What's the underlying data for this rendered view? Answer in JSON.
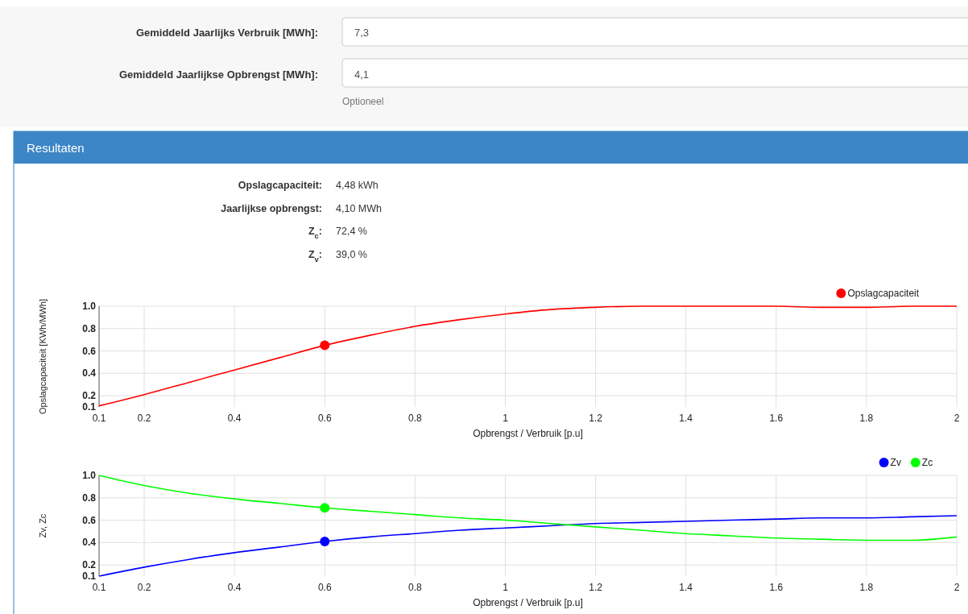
{
  "chart_data": [
    {
      "type": "other",
      "annotations": [
        "Gemiddeld Jaarlijks Verbruik [MWh]:",
        "7,3",
        "Gemiddeld Jaarlijkse Opbrengst [MWh]:",
        "4,1",
        "Optioneel",
        "Resultaten",
        "Opslagcapaciteit:",
        "4,48 kWh",
        "Jaarlijkse opbrengst:",
        "4,10 MWh",
        "Z$_{c}$:",
        "72,4 %",
        "Z$_{v}$:",
        "39,0 %"
      ]
    },
    {
      "type": "line",
      "xlabel": "Opbrengst / Verbruik [p.u]",
      "ylabel": "Opslagcapaciteit [KWh/MWh]",
      "xlim": [
        0.1,
        2
      ],
      "ylim": [
        0.1,
        1.0
      ],
      "xticks": [
        0.1,
        0.2,
        0.4,
        0.6,
        0.8,
        1,
        1.2,
        1.4,
        1.6,
        1.8,
        2
      ],
      "yticks": [
        0.1,
        0.2,
        0.4,
        0.6,
        0.8,
        {
          "value": 1,
          "label": "1.0"
        }
      ],
      "grid": true,
      "legend": "top right",
      "series": [
        {
          "name": "Opslagcapaciteit",
          "color": "#ff0000",
          "x": [
            0.1,
            0.2,
            0.3,
            0.4,
            0.5,
            0.6,
            0.7,
            0.8,
            0.9,
            1.0,
            1.1,
            1.2,
            1.3,
            1.4,
            1.5,
            1.6,
            1.7,
            1.8,
            1.9,
            2.0
          ],
          "values": [
            0.11,
            0.21,
            0.32,
            0.43,
            0.54,
            0.65,
            0.74,
            0.82,
            0.88,
            0.93,
            0.97,
            0.99,
            1.0,
            1.0,
            1.0,
            1.0,
            0.99,
            0.99,
            1.0,
            1.0
          ]
        },
        {
          "type": "scatter",
          "color": "#ff0000",
          "marker": "circle",
          "x": [
            0.6
          ],
          "values": [
            0.65
          ]
        }
      ]
    },
    {
      "type": "line",
      "xlabel": "Opbrengst / Verbruik [p.u]",
      "ylabel": "Zv, Zc",
      "xlim": [
        0.1,
        2
      ],
      "ylim": [
        0.1,
        1.0
      ],
      "xticks": [
        0.1,
        0.2,
        0.4,
        0.6,
        0.8,
        1,
        1.2,
        1.4,
        1.6,
        1.8,
        2
      ],
      "yticks": [
        0.1,
        0.2,
        0.4,
        0.6,
        0.8,
        {
          "value": 1,
          "label": "1.0"
        }
      ],
      "grid": true,
      "legend": "top right",
      "series": [
        {
          "name": "Zv",
          "color": "#0000ff",
          "x": [
            0.1,
            0.2,
            0.3,
            0.4,
            0.5,
            0.6,
            0.7,
            0.8,
            0.9,
            1.0,
            1.1,
            1.2,
            1.3,
            1.4,
            1.5,
            1.6,
            1.7,
            1.8,
            1.9,
            2.0
          ],
          "values": [
            0.1,
            0.18,
            0.25,
            0.31,
            0.36,
            0.41,
            0.45,
            0.48,
            0.51,
            0.53,
            0.55,
            0.57,
            0.58,
            0.59,
            0.6,
            0.61,
            0.62,
            0.62,
            0.63,
            0.64
          ]
        },
        {
          "name": "Zc",
          "color": "#00ff00",
          "x": [
            0.1,
            0.2,
            0.3,
            0.4,
            0.5,
            0.6,
            0.7,
            0.8,
            0.9,
            1.0,
            1.1,
            1.2,
            1.3,
            1.4,
            1.5,
            1.6,
            1.7,
            1.8,
            1.9,
            2.0
          ],
          "values": [
            1.0,
            0.91,
            0.84,
            0.79,
            0.75,
            0.71,
            0.68,
            0.65,
            0.62,
            0.6,
            0.57,
            0.54,
            0.51,
            0.48,
            0.46,
            0.44,
            0.43,
            0.42,
            0.42,
            0.45
          ]
        },
        {
          "type": "scatter",
          "color": "#0000ff",
          "marker": "circle",
          "x": [
            0.6
          ],
          "values": [
            0.41
          ]
        },
        {
          "type": "scatter",
          "color": "#00ff00",
          "marker": "circle",
          "x": [
            0.6
          ],
          "values": [
            0.71
          ]
        }
      ]
    }
  ]
}
